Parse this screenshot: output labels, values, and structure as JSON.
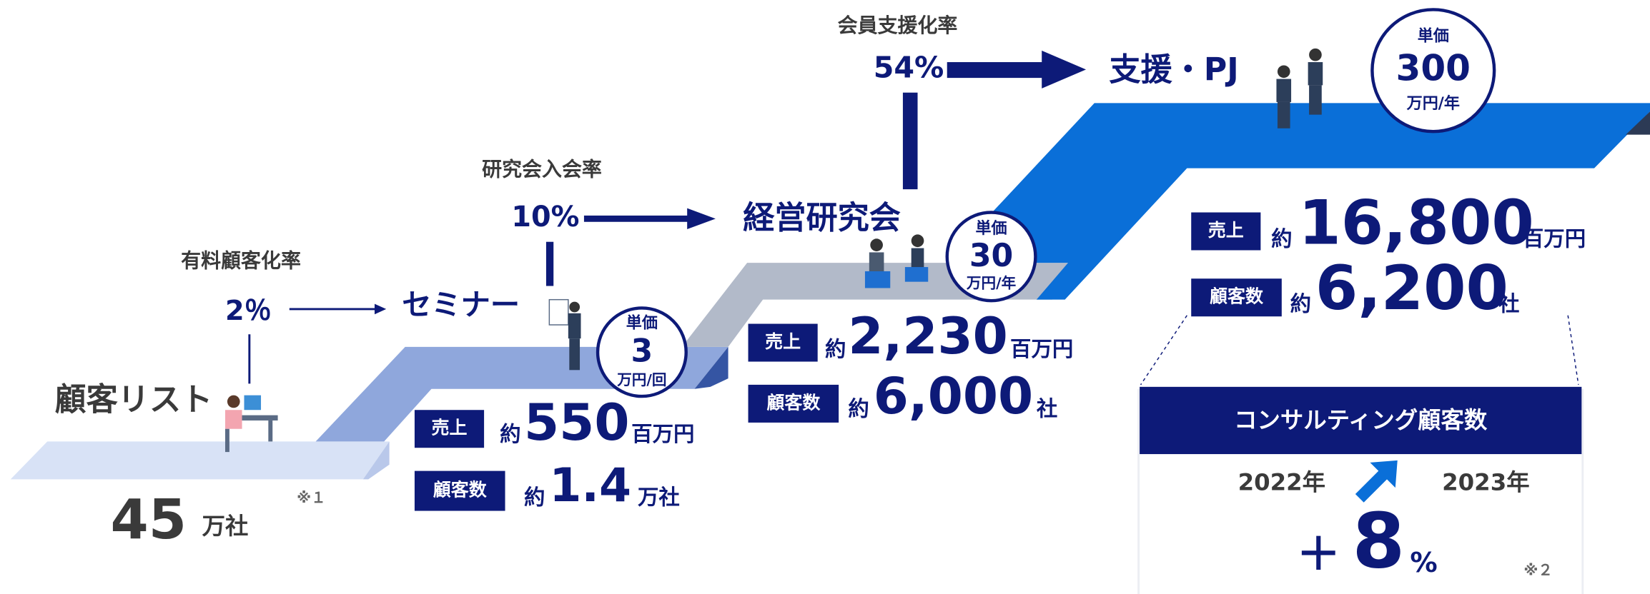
{
  "stages": [
    {
      "name": "顧客リスト",
      "count": "45",
      "count_unit": "万社",
      "note": "※１"
    },
    {
      "rate_label": "有料顧客化率",
      "rate": "2％",
      "name": "セミナー",
      "price_label": "単価",
      "price": "3",
      "price_unit": "万円/回",
      "sales_label": "売上",
      "sales_prefix": "約",
      "sales": "550",
      "sales_unit": "百万円",
      "customers_label": "顧客数",
      "customers_prefix": "約",
      "customers": "1.4",
      "customers_unit": "万社"
    },
    {
      "rate_label": "研究会入会率",
      "rate": "10%",
      "name": "経営研究会",
      "price_label": "単価",
      "price": "30",
      "price_unit": "万円/年",
      "sales_label": "売上",
      "sales_prefix": "約",
      "sales": "2,230",
      "sales_unit": "百万円",
      "customers_label": "顧客数",
      "customers_prefix": "約",
      "customers": "6,000",
      "customers_unit": "社"
    },
    {
      "rate_label": "会員支援化率",
      "rate": "54%",
      "name": "支援・PJ",
      "price_label": "単価",
      "price": "300",
      "price_unit": "万円/年",
      "sales_label": "売上",
      "sales_prefix": "約",
      "sales": "16,800",
      "sales_unit": "百万円",
      "customers_label": "顧客数",
      "customers_prefix": "約",
      "customers": "6,200",
      "customers_unit": "社"
    }
  ],
  "consulting": {
    "title": "コンサルティング顧客数",
    "from": "2022年",
    "to": "2023年",
    "sign": "＋",
    "growth": "8",
    "growth_unit": "%",
    "note": "※２"
  }
}
